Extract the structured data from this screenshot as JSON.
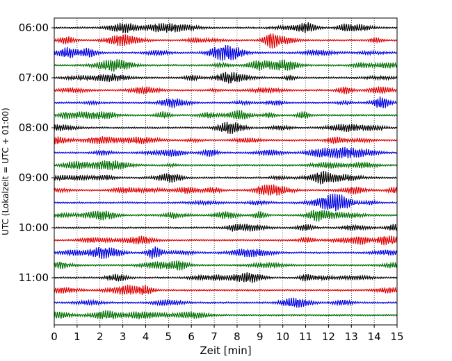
{
  "chart_data": {
    "type": "line",
    "xlabel": "Zeit  [min]",
    "ylabel": "UTC (Lokalzeit = UTC + 01:00)",
    "xlim": [
      0,
      15
    ],
    "x_ticks": [
      "0",
      "1",
      "2",
      "3",
      "4",
      "5",
      "6",
      "7",
      "8",
      "9",
      "10",
      "11",
      "12",
      "13",
      "14",
      "15"
    ],
    "y_ticks": [
      {
        "label": "06:00",
        "trace": 0
      },
      {
        "label": "07:00",
        "trace": 4
      },
      {
        "label": "08:00",
        "trace": 8
      },
      {
        "label": "09:00",
        "trace": 12
      },
      {
        "label": "10:00",
        "trace": 16
      },
      {
        "label": "11:00",
        "trace": 20
      }
    ],
    "trace_count": 24,
    "trace_interval_min": 15,
    "trace_colors": [
      "#000000",
      "#e00000",
      "#0000e0",
      "#007000"
    ],
    "grid": "vertical-dotted",
    "series": [
      {
        "start": "06:00"
      },
      {
        "start": "06:15"
      },
      {
        "start": "06:30"
      },
      {
        "start": "06:45"
      },
      {
        "start": "07:00"
      },
      {
        "start": "07:15"
      },
      {
        "start": "07:30"
      },
      {
        "start": "07:45"
      },
      {
        "start": "08:00"
      },
      {
        "start": "08:15"
      },
      {
        "start": "08:30"
      },
      {
        "start": "08:45"
      },
      {
        "start": "09:00"
      },
      {
        "start": "09:15"
      },
      {
        "start": "09:30"
      },
      {
        "start": "09:45"
      },
      {
        "start": "10:00"
      },
      {
        "start": "10:15"
      },
      {
        "start": "10:30"
      },
      {
        "start": "10:45"
      },
      {
        "start": "11:00"
      },
      {
        "start": "11:15"
      },
      {
        "start": "11:30"
      },
      {
        "start": "11:45"
      }
    ]
  }
}
